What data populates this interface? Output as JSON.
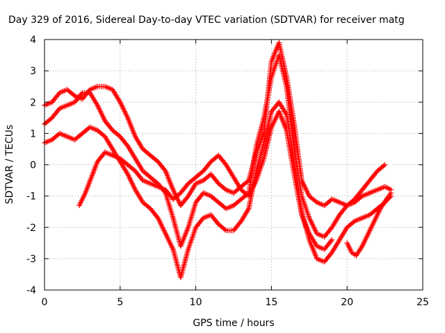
{
  "chart_data": {
    "type": "scatter",
    "title": "Day 329 of 2016, Sidereal Day-to-day VTEC variation (SDTVAR) for receiver matg",
    "xlabel": "GPS time / hours",
    "ylabel": "SDTVAR / TECUs",
    "xlim": [
      0,
      25
    ],
    "ylim": [
      -4,
      4
    ],
    "xticks": [
      0,
      5,
      10,
      15,
      20,
      25
    ],
    "yticks": [
      -4,
      -3,
      -2,
      -1,
      0,
      1,
      2,
      3,
      4
    ],
    "grid": true,
    "marker": "plus",
    "color": "#ff0000",
    "series": [
      {
        "name": "sat-track-1",
        "x": [
          0.0,
          0.5,
          1.0,
          1.5,
          2.0,
          2.5,
          3.0,
          3.5,
          4.0,
          4.5,
          5.0,
          5.5,
          6.0,
          6.5,
          7.0,
          7.5,
          8.0,
          8.5,
          9.0,
          9.5,
          10.0,
          10.5,
          11.0,
          11.5,
          12.0,
          12.5,
          13.0,
          13.5,
          14.0,
          14.5,
          15.0,
          15.5,
          16.0,
          16.5,
          17.0,
          17.5,
          18.0,
          18.5,
          19.0,
          19.5,
          20.0,
          20.5,
          21.0,
          21.5,
          22.0,
          22.5
        ],
        "y": [
          1.9,
          2.0,
          2.3,
          2.4,
          2.2,
          2.1,
          2.4,
          2.5,
          2.5,
          2.4,
          2.0,
          1.5,
          0.9,
          0.5,
          0.3,
          0.1,
          -0.2,
          -0.8,
          -1.3,
          -1.0,
          -0.6,
          -0.5,
          -0.3,
          -0.6,
          -0.8,
          -0.9,
          -0.7,
          -0.5,
          0.4,
          1.0,
          3.3,
          3.9,
          2.8,
          1.3,
          -0.5,
          -1.0,
          -1.2,
          -1.3,
          -1.1,
          -1.2,
          -1.3,
          -1.1,
          -0.8,
          -0.5,
          -0.2,
          0.0
        ]
      },
      {
        "name": "sat-track-2",
        "x": [
          0.0,
          0.5,
          1.0,
          1.5,
          2.0,
          2.5,
          3.0,
          3.5,
          4.0,
          4.5,
          5.0,
          5.5,
          6.0,
          6.5,
          7.0,
          7.5,
          8.0,
          8.5,
          9.0,
          9.5,
          10.0,
          10.5,
          11.0,
          11.5,
          12.0,
          12.5,
          13.0,
          13.5,
          14.0,
          14.5,
          15.0,
          15.5,
          16.0,
          16.5,
          17.0,
          17.5,
          18.0,
          18.5,
          19.0,
          19.5,
          20.0,
          20.5,
          21.0,
          21.5,
          22.0,
          22.5,
          22.9
        ],
        "y": [
          1.3,
          1.5,
          1.8,
          1.9,
          2.0,
          2.3,
          2.3,
          1.9,
          1.4,
          1.1,
          0.9,
          0.6,
          0.2,
          -0.2,
          -0.4,
          -0.6,
          -0.9,
          -1.7,
          -2.6,
          -2.0,
          -1.2,
          -0.9,
          -1.0,
          -1.2,
          -1.4,
          -1.3,
          -1.1,
          -0.9,
          0.6,
          1.5,
          2.8,
          3.5,
          2.5,
          0.5,
          -1.0,
          -1.7,
          -2.2,
          -2.3,
          -2.0,
          -1.6,
          -1.3,
          -1.2,
          -1.0,
          -0.9,
          -0.8,
          -0.7,
          -0.8
        ]
      },
      {
        "name": "sat-track-3",
        "x": [
          0.0,
          0.5,
          1.0,
          1.5,
          2.0,
          2.5,
          3.0,
          3.5,
          4.0,
          4.5,
          5.0,
          5.5,
          6.0,
          6.5,
          7.0,
          7.5,
          8.0,
          8.5,
          9.0,
          9.5,
          10.0,
          10.5,
          11.0,
          11.5,
          12.0,
          12.5,
          13.0,
          13.5,
          14.0,
          14.5,
          15.0,
          15.5,
          16.0,
          16.5,
          17.0,
          17.5,
          18.0,
          18.5,
          19.0,
          19.5,
          20.0,
          20.5,
          21.0,
          21.5,
          22.0,
          22.5,
          22.9
        ],
        "y": [
          0.7,
          0.8,
          1.0,
          0.9,
          0.8,
          1.0,
          1.2,
          1.1,
          0.9,
          0.5,
          0.1,
          -0.3,
          -0.8,
          -1.2,
          -1.4,
          -1.7,
          -2.2,
          -2.7,
          -3.6,
          -2.7,
          -2.0,
          -1.7,
          -1.6,
          -1.9,
          -2.1,
          -2.1,
          -1.8,
          -1.4,
          -0.2,
          0.7,
          1.7,
          2.0,
          1.6,
          0.1,
          -1.5,
          -2.4,
          -3.0,
          -3.1,
          -2.8,
          -2.4,
          -2.0,
          -1.8,
          -1.7,
          -1.6,
          -1.4,
          -1.2,
          -1.0
        ]
      },
      {
        "name": "sat-track-4",
        "x": [
          2.3,
          2.7,
          3.1,
          3.5,
          4.0,
          4.5,
          5.0,
          5.5,
          6.0,
          6.5,
          7.0,
          7.5,
          8.0,
          8.5,
          9.0,
          9.5,
          10.0,
          10.5,
          11.0,
          11.5,
          12.0,
          12.5,
          13.0,
          13.5,
          14.0,
          14.5,
          15.0,
          15.5,
          16.0,
          16.5,
          17.0,
          17.5,
          18.0,
          18.5,
          19.0
        ],
        "y": [
          -1.3,
          -0.9,
          -0.4,
          0.1,
          0.4,
          0.3,
          0.2,
          0.0,
          -0.2,
          -0.5,
          -0.6,
          -0.7,
          -0.8,
          -1.1,
          -0.9,
          -0.6,
          -0.4,
          -0.2,
          0.1,
          0.3,
          0.0,
          -0.4,
          -0.8,
          -1.0,
          -0.5,
          0.2,
          1.2,
          1.7,
          1.1,
          -0.3,
          -1.6,
          -2.2,
          -2.6,
          -2.7,
          -2.4
        ]
      },
      {
        "name": "sat-track-5",
        "x": [
          20.0,
          20.3,
          20.6,
          21.0,
          21.4,
          21.8,
          22.2,
          22.6,
          22.9
        ],
        "y": [
          -2.5,
          -2.8,
          -2.9,
          -2.6,
          -2.2,
          -1.8,
          -1.4,
          -1.1,
          -0.9
        ]
      }
    ]
  }
}
